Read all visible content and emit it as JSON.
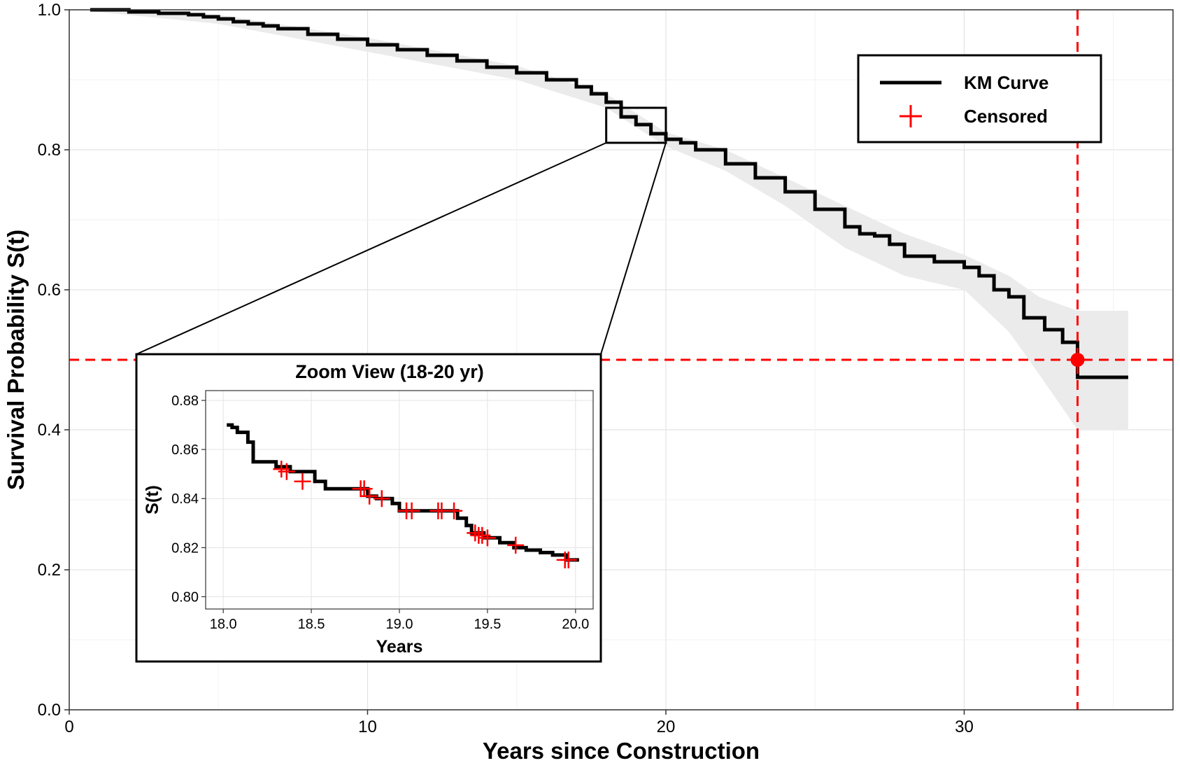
{
  "chart_data": {
    "type": "line",
    "xlabel": "Years since Construction",
    "ylabel": "Survival Probability S(t)",
    "xlim": [
      0,
      37
    ],
    "ylim": [
      0,
      1.0
    ],
    "x_ticks": [
      0,
      10,
      20,
      30
    ],
    "y_ticks": [
      0.0,
      0.2,
      0.4,
      0.6,
      0.8,
      1.0
    ],
    "x_tick_labels": [
      "0",
      "10",
      "20",
      "30"
    ],
    "y_tick_labels": [
      "0.0",
      "0.2",
      "0.4",
      "0.6",
      "0.8",
      "1.0"
    ],
    "grid": true,
    "legend": {
      "position": "top-right",
      "entries": [
        {
          "label": "KM Curve",
          "marker": "line",
          "color": "#000000"
        },
        {
          "label": "Censored",
          "marker": "plus",
          "color": "#ff0000"
        }
      ]
    },
    "series": [
      {
        "name": "KM Curve",
        "color": "#000000",
        "step": true,
        "x": [
          0.7,
          2,
          3,
          4,
          4.5,
          5,
          5.5,
          6,
          6.5,
          7,
          8,
          9,
          10,
          11,
          12,
          13,
          14,
          15,
          16,
          17,
          17.5,
          18,
          18.5,
          19,
          19.5,
          20,
          20.5,
          21,
          22,
          23,
          24,
          25,
          26,
          26.5,
          27,
          27.5,
          28,
          29,
          30,
          30.5,
          31,
          31.5,
          32,
          32.7,
          33.3,
          33.8,
          35.5
        ],
        "y": [
          1.0,
          0.997,
          0.995,
          0.993,
          0.99,
          0.987,
          0.983,
          0.98,
          0.977,
          0.973,
          0.965,
          0.958,
          0.95,
          0.943,
          0.935,
          0.927,
          0.918,
          0.91,
          0.9,
          0.89,
          0.88,
          0.868,
          0.847,
          0.836,
          0.823,
          0.815,
          0.81,
          0.8,
          0.78,
          0.76,
          0.74,
          0.715,
          0.69,
          0.68,
          0.677,
          0.665,
          0.648,
          0.64,
          0.632,
          0.62,
          0.6,
          0.59,
          0.56,
          0.543,
          0.525,
          0.475,
          0.475
        ]
      }
    ],
    "confidence_band": {
      "color": "#ebebeb",
      "x": [
        0.7,
        5,
        10,
        15,
        18,
        20,
        22,
        24,
        26,
        28,
        30,
        31.5,
        32.5,
        33.8,
        35.5
      ],
      "lower": [
        0.998,
        0.98,
        0.94,
        0.9,
        0.86,
        0.805,
        0.77,
        0.72,
        0.66,
        0.62,
        0.6,
        0.54,
        0.48,
        0.4,
        0.4
      ],
      "upper": [
        1.0,
        0.993,
        0.96,
        0.92,
        0.88,
        0.825,
        0.8,
        0.76,
        0.72,
        0.68,
        0.65,
        0.62,
        0.59,
        0.57,
        0.57
      ]
    },
    "reference_lines": {
      "color": "#ff0000",
      "horizontal_y": 0.5,
      "vertical_x": 33.8,
      "intersection_marker": {
        "x": 33.8,
        "y": 0.5,
        "shape": "circle"
      }
    },
    "zoom_region": {
      "x": [
        18,
        20
      ],
      "y": [
        0.81,
        0.86
      ]
    },
    "inset": {
      "type": "line",
      "title": "Zoom View (18-20 yr)",
      "xlabel": "Years",
      "ylabel": "S(t)",
      "xlim": [
        17.9,
        20.1
      ],
      "ylim": [
        0.795,
        0.884
      ],
      "x_ticks": [
        18.0,
        18.5,
        19.0,
        19.5,
        20.0
      ],
      "y_ticks": [
        0.8,
        0.82,
        0.84,
        0.86,
        0.88
      ],
      "x_tick_labels": [
        "18.0",
        "18.5",
        "19.0",
        "19.5",
        "20.0"
      ],
      "y_tick_labels": [
        "0.80",
        "0.82",
        "0.84",
        "0.86",
        "0.88"
      ],
      "grid": true,
      "series": [
        {
          "name": "KM Curve",
          "color": "#000000",
          "step": true,
          "x": [
            18.02,
            18.05,
            18.08,
            18.14,
            18.17,
            18.3,
            18.38,
            18.52,
            18.58,
            18.82,
            18.87,
            18.96,
            19.0,
            19.33,
            19.38,
            19.41,
            19.48,
            19.57,
            19.65,
            19.72,
            19.8,
            19.87,
            19.95,
            20.02
          ],
          "y": [
            0.87,
            0.869,
            0.867,
            0.863,
            0.855,
            0.853,
            0.851,
            0.847,
            0.844,
            0.841,
            0.84,
            0.838,
            0.835,
            0.832,
            0.829,
            0.826,
            0.824,
            0.822,
            0.82,
            0.819,
            0.818,
            0.817,
            0.815,
            0.815
          ]
        }
      ],
      "censored": {
        "color": "#ff0000",
        "x": [
          18.33,
          18.36,
          18.45,
          18.78,
          18.8,
          18.83,
          18.9,
          19.04,
          19.07,
          19.22,
          19.24,
          19.31,
          19.43,
          19.45,
          19.47,
          19.5,
          19.66,
          19.94,
          19.96
        ],
        "y": [
          0.852,
          0.851,
          0.847,
          0.844,
          0.844,
          0.841,
          0.84,
          0.835,
          0.835,
          0.835,
          0.835,
          0.835,
          0.826,
          0.825,
          0.825,
          0.824,
          0.821,
          0.815,
          0.815
        ]
      }
    }
  }
}
